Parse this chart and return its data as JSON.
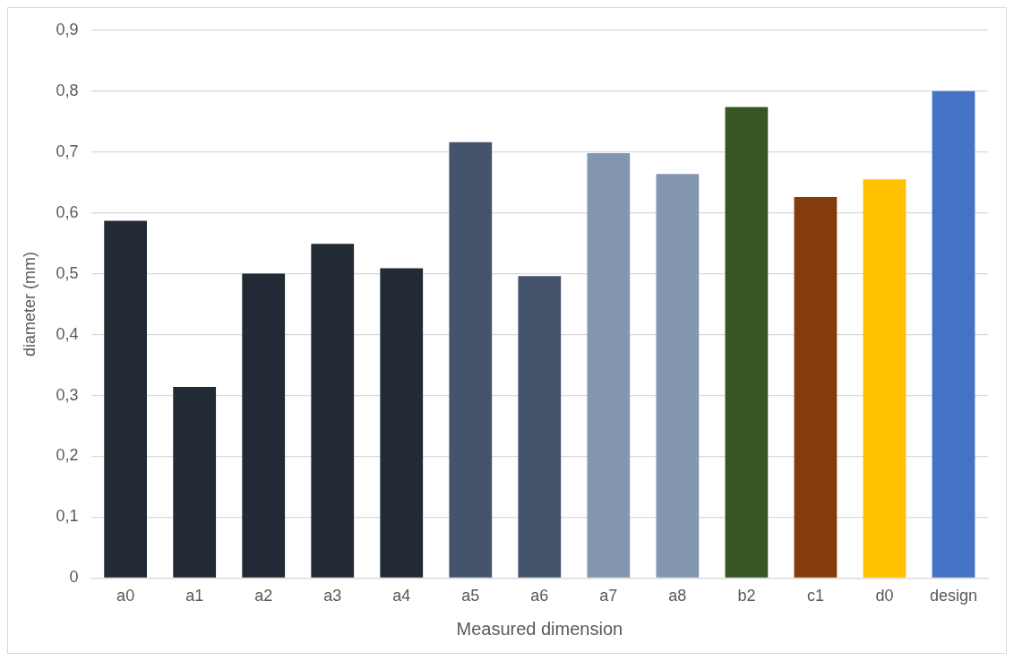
{
  "chart_data": {
    "type": "bar",
    "xlabel": "Measured dimension",
    "ylabel": "diameter (mm)",
    "categories": [
      "a0",
      "a1",
      "a2",
      "a3",
      "a4",
      "a5",
      "a6",
      "a7",
      "a8",
      "b2",
      "c1",
      "d0",
      "design"
    ],
    "values": [
      0.587,
      0.314,
      0.5,
      0.549,
      0.509,
      0.716,
      0.496,
      0.698,
      0.664,
      0.774,
      0.626,
      0.655,
      0.8
    ],
    "colors": [
      "#222a35",
      "#222a35",
      "#222a35",
      "#222a35",
      "#222a35",
      "#44546a",
      "#44546a",
      "#8497b0",
      "#8497b0",
      "#375623",
      "#843c0c",
      "#ffc000",
      "#4472c4"
    ],
    "ylim": [
      0,
      0.9
    ],
    "yticks": [
      {
        "value": 0,
        "label": "0"
      },
      {
        "value": 0.1,
        "label": "0,1"
      },
      {
        "value": 0.2,
        "label": "0,2"
      },
      {
        "value": 0.3,
        "label": "0,3"
      },
      {
        "value": 0.4,
        "label": "0,4"
      },
      {
        "value": 0.5,
        "label": "0,5"
      },
      {
        "value": 0.6,
        "label": "0,6"
      },
      {
        "value": 0.7,
        "label": "0,7"
      },
      {
        "value": 0.8,
        "label": "0,8"
      },
      {
        "value": 0.9,
        "label": "0,9"
      }
    ],
    "grid": "y",
    "legend": false
  }
}
